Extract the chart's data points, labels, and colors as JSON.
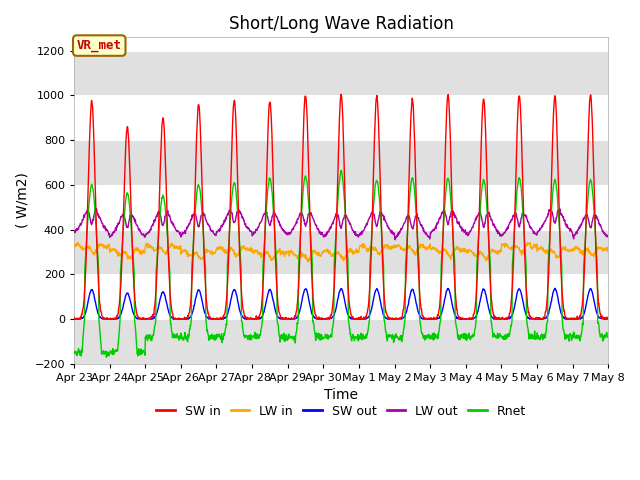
{
  "title": "Short/Long Wave Radiation",
  "ylabel": "( W/m2)",
  "xlabel": "Time",
  "ylim": [
    -200,
    1260
  ],
  "yticks": [
    -200,
    0,
    200,
    400,
    600,
    800,
    1000,
    1200
  ],
  "annotation": "VR_met",
  "legend": [
    "SW in",
    "LW in",
    "SW out",
    "LW out",
    "Rnet"
  ],
  "colors": {
    "SW in": "#ff0000",
    "LW in": "#ffa500",
    "SW out": "#0000ff",
    "LW out": "#aa00aa",
    "Rnet": "#00cc00"
  },
  "plot_bg": "#ffffff",
  "band_color": "#e0e0e0",
  "n_days": 15,
  "day_labels": [
    "Apr 23",
    "Apr 24",
    "Apr 25",
    "Apr 26",
    "Apr 27",
    "Apr 28",
    "Apr 29",
    "Apr 30",
    "May 1",
    "May 2",
    "May 3",
    "May 4",
    "May 5",
    "May 6",
    "May 7",
    "May 8"
  ],
  "sw_in_peaks": [
    970,
    855,
    900,
    960,
    980,
    975,
    1000,
    1005,
    995,
    980,
    1000,
    985,
    1000,
    995,
    1000
  ],
  "lw_base": 310,
  "lw_out_base": 370,
  "rnet_peaks": [
    600,
    560,
    550,
    600,
    610,
    630,
    640,
    660,
    620,
    630,
    630,
    620,
    630,
    620,
    620
  ],
  "rnet_night_first": -150,
  "rnet_night_later": -80
}
